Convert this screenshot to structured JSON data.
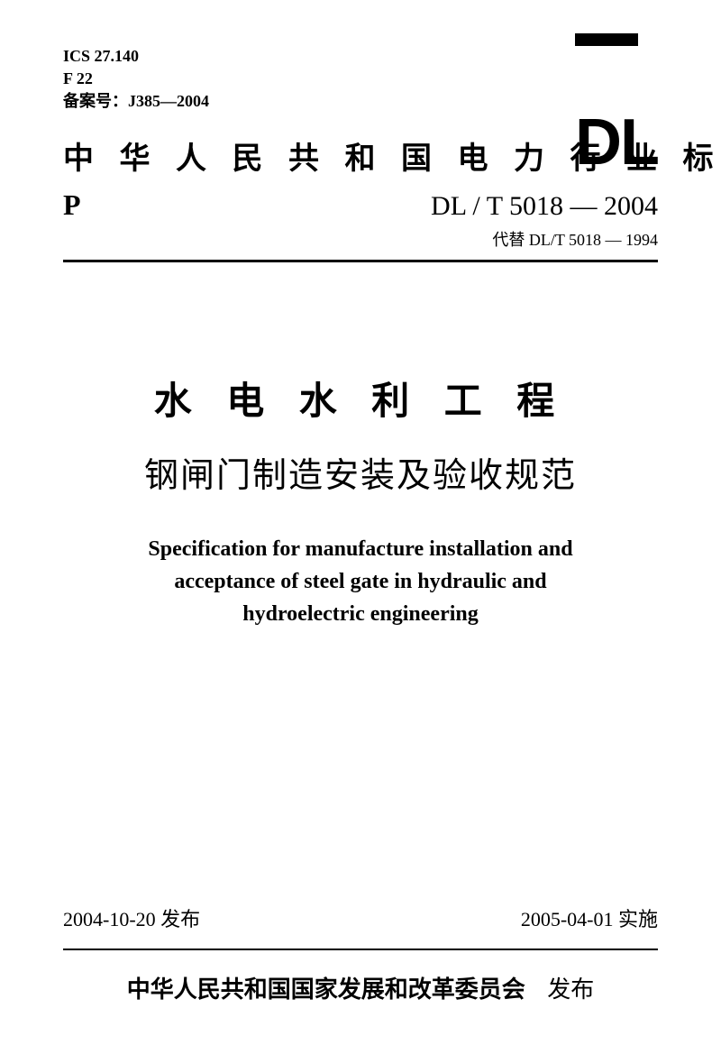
{
  "meta": {
    "ics": "ICS 27.140",
    "fcode": "F 22",
    "record": "备案号：J385—2004"
  },
  "logo": "DL",
  "header": "中 华 人 民 共 和 国 电 力 行 业 标 准",
  "std": {
    "p": "P",
    "number": "DL / T  5018 — 2004",
    "replaces": "代替 DL/T  5018 — 1994"
  },
  "title": {
    "cn_line1": "水 电 水 利 工 程",
    "cn_line2": "钢闸门制造安装及验收规范",
    "en_line1": "Specification for manufacture installation and",
    "en_line2": "acceptance of steel gate in hydraulic and",
    "en_line3": "hydroelectric engineering"
  },
  "dates": {
    "issued": "2004-10-20 发布",
    "effective": "2005-04-01 实施"
  },
  "issuer": {
    "org": "中华人民共和国国家发展和改革委员会",
    "action": "发布"
  }
}
